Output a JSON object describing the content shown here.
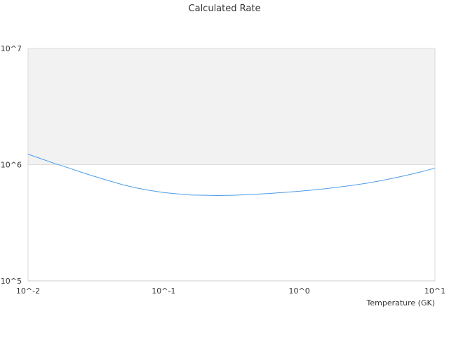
{
  "chart_data": {
    "type": "line",
    "title": "Calculated Rate",
    "xlabel": "Temperature (GK)",
    "ylabel": "",
    "x_scale": "log",
    "y_scale": "log",
    "xlim": [
      0.01,
      10
    ],
    "ylim": [
      100000,
      10000000
    ],
    "x_ticks": [
      0.01,
      0.1,
      1,
      10
    ],
    "x_tick_labels": [
      "10^-2",
      "10^-1",
      "10^0",
      "10^1"
    ],
    "y_ticks": [
      100000,
      1000000,
      10000000
    ],
    "y_tick_labels": [
      "10^5",
      "10^6",
      "10^7"
    ],
    "grid": true,
    "band": {
      "from": 1000000,
      "to": 10000000,
      "color": "#f2f2f2"
    },
    "series": [
      {
        "color": "#4c9be8",
        "x": [
          0.01,
          0.0126,
          0.0158,
          0.02,
          0.0251,
          0.0316,
          0.0398,
          0.0501,
          0.0631,
          0.0794,
          0.1,
          0.126,
          0.158,
          0.2,
          0.251,
          0.316,
          0.398,
          0.501,
          0.631,
          0.794,
          1.0,
          1.26,
          1.58,
          2.0,
          2.51,
          3.16,
          3.98,
          5.01,
          6.31,
          7.94,
          10.0
        ],
        "values": [
          1230000,
          1120000,
          1020000,
          935000,
          855000,
          785000,
          725000,
          670000,
          630000,
          600000,
          575000,
          560000,
          548000,
          545000,
          542000,
          545000,
          550000,
          558000,
          567000,
          578000,
          590000,
          605000,
          622000,
          643000,
          666000,
          693000,
          727000,
          768000,
          815000,
          868000,
          935000
        ]
      }
    ]
  }
}
